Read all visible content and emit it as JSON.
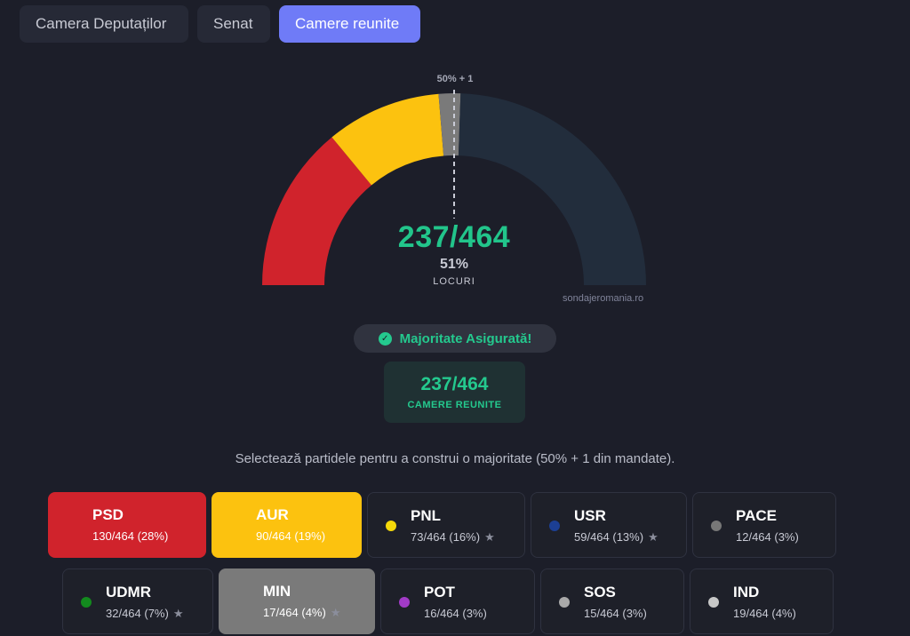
{
  "tabs": [
    {
      "label": "Camera Deputaților",
      "active": false
    },
    {
      "label": "Senat",
      "active": false
    },
    {
      "label": "Camere reunite",
      "active": true
    }
  ],
  "gauge": {
    "total": 464,
    "threshold_label": "50% + 1",
    "count": "237/464",
    "percent": "51%",
    "seats_label": "LOCURI",
    "watermark": "sondajeromania.ro",
    "segments": [
      {
        "party": "PSD",
        "seats": 130,
        "color": "#d0232c"
      },
      {
        "party": "AUR",
        "seats": 90,
        "color": "#fcc20f"
      },
      {
        "party": "MIN",
        "seats": 17,
        "color": "#7a7a7a"
      }
    ],
    "remainder_color": "#222d3c"
  },
  "majority": {
    "label": "Majoritate Asigurată!",
    "icon": "check-circle-icon",
    "count": "237/464",
    "sub_label": "CAMERE REUNITE"
  },
  "instruction": "Selectează partidele pentru a construi o majoritate (50% + 1 din mandate).",
  "parties_row1": [
    {
      "name": "PSD",
      "seats": "130/464 (28%)",
      "star": false,
      "selected": true,
      "color": "#d0232c"
    },
    {
      "name": "AUR",
      "seats": "90/464 (19%)",
      "star": false,
      "selected": true,
      "color": "#fcc20f"
    },
    {
      "name": "PNL",
      "seats": "73/464 (16%)",
      "star": true,
      "selected": false,
      "color": "#f5d90a"
    },
    {
      "name": "USR",
      "seats": "59/464 (13%)",
      "star": true,
      "selected": false,
      "color": "#1c3f94"
    },
    {
      "name": "PACE",
      "seats": "12/464 (3%)",
      "star": false,
      "selected": false,
      "color": "#777777"
    }
  ],
  "parties_row2": [
    {
      "name": "UDMR",
      "seats": "32/464 (7%)",
      "star": true,
      "selected": false,
      "color": "#138a1e"
    },
    {
      "name": "MIN",
      "seats": "17/464 (4%)",
      "star": true,
      "selected": true,
      "color": "#7a7a7a"
    },
    {
      "name": "POT",
      "seats": "16/464 (3%)",
      "star": false,
      "selected": false,
      "color": "#a23bc7"
    },
    {
      "name": "SOS",
      "seats": "15/464 (3%)",
      "star": false,
      "selected": false,
      "color": "#a9a9a9"
    },
    {
      "name": "IND",
      "seats": "19/464 (4%)",
      "star": false,
      "selected": false,
      "color": "#c7c7c7"
    }
  ],
  "star_glyph": "★"
}
